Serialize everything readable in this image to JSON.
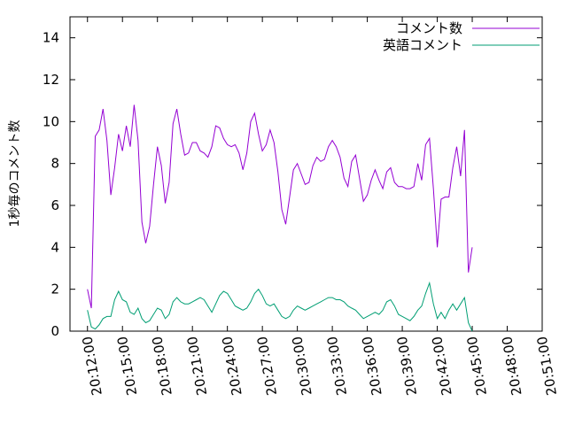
{
  "chart_data": {
    "type": "line",
    "xlabel": "",
    "ylabel": "1秒毎のコメント数",
    "ylim": [
      0,
      15
    ],
    "yticks": [
      0,
      2,
      4,
      6,
      8,
      10,
      12,
      14
    ],
    "xlim": [
      "20:10:30",
      "20:51:00"
    ],
    "xticks": [
      "20:12:00",
      "20:15:00",
      "20:18:00",
      "20:21:00",
      "20:24:00",
      "20:27:00",
      "20:30:00",
      "20:33:00",
      "20:36:00",
      "20:39:00",
      "20:42:00",
      "20:45:00",
      "20:48:00",
      "20:51:00"
    ],
    "legend_position": "top-right",
    "grid": false,
    "x_time_start": "20:12:00",
    "x_step_seconds": 20,
    "series": [
      {
        "name": "コメント数",
        "color": "#9400d3",
        "values": [
          2.0,
          1.1,
          9.3,
          9.6,
          10.6,
          9.1,
          6.5,
          7.8,
          9.4,
          8.6,
          9.8,
          8.8,
          10.8,
          9.1,
          5.2,
          4.2,
          5.0,
          7.0,
          8.8,
          7.9,
          6.1,
          7.1,
          9.9,
          10.6,
          9.4,
          8.4,
          8.5,
          9.0,
          9.0,
          8.6,
          8.5,
          8.3,
          8.8,
          9.8,
          9.7,
          9.2,
          8.9,
          8.8,
          8.9,
          8.5,
          7.7,
          8.5,
          10.0,
          10.4,
          9.4,
          8.6,
          8.9,
          9.6,
          9.0,
          7.6,
          5.8,
          5.1,
          6.4,
          7.7,
          8.0,
          7.5,
          7.0,
          7.1,
          7.9,
          8.3,
          8.1,
          8.2,
          8.8,
          9.1,
          8.8,
          8.3,
          7.3,
          6.9,
          8.1,
          8.4,
          7.3,
          6.2,
          6.5,
          7.2,
          7.7,
          7.2,
          6.8,
          7.6,
          7.8,
          7.1,
          6.9,
          6.9,
          6.8,
          6.8,
          6.9,
          8.0,
          7.2,
          8.9,
          9.2,
          6.8,
          4.0,
          6.3,
          6.4,
          6.4,
          7.8,
          8.8,
          7.4,
          9.6,
          2.8,
          4.0
        ]
      },
      {
        "name": "英語コメント",
        "color": "#009e73",
        "values": [
          1.0,
          0.2,
          0.1,
          0.3,
          0.6,
          0.7,
          0.7,
          1.5,
          1.9,
          1.5,
          1.4,
          0.9,
          0.8,
          1.1,
          0.6,
          0.4,
          0.5,
          0.8,
          1.1,
          1.0,
          0.6,
          0.8,
          1.4,
          1.6,
          1.4,
          1.3,
          1.3,
          1.4,
          1.5,
          1.6,
          1.5,
          1.2,
          0.9,
          1.3,
          1.7,
          1.9,
          1.8,
          1.5,
          1.2,
          1.1,
          1.0,
          1.1,
          1.4,
          1.8,
          2.0,
          1.7,
          1.3,
          1.2,
          1.3,
          1.0,
          0.7,
          0.6,
          0.7,
          1.0,
          1.2,
          1.1,
          1.0,
          1.1,
          1.2,
          1.3,
          1.4,
          1.5,
          1.6,
          1.6,
          1.5,
          1.5,
          1.4,
          1.2,
          1.1,
          1.0,
          0.8,
          0.6,
          0.7,
          0.8,
          0.9,
          0.8,
          1.0,
          1.4,
          1.5,
          1.2,
          0.8,
          0.7,
          0.6,
          0.5,
          0.7,
          1.0,
          1.2,
          1.8,
          2.3,
          1.3,
          0.6,
          0.9,
          0.6,
          1.0,
          1.3,
          1.0,
          1.3,
          1.6,
          0.4,
          0.0
        ]
      }
    ]
  }
}
